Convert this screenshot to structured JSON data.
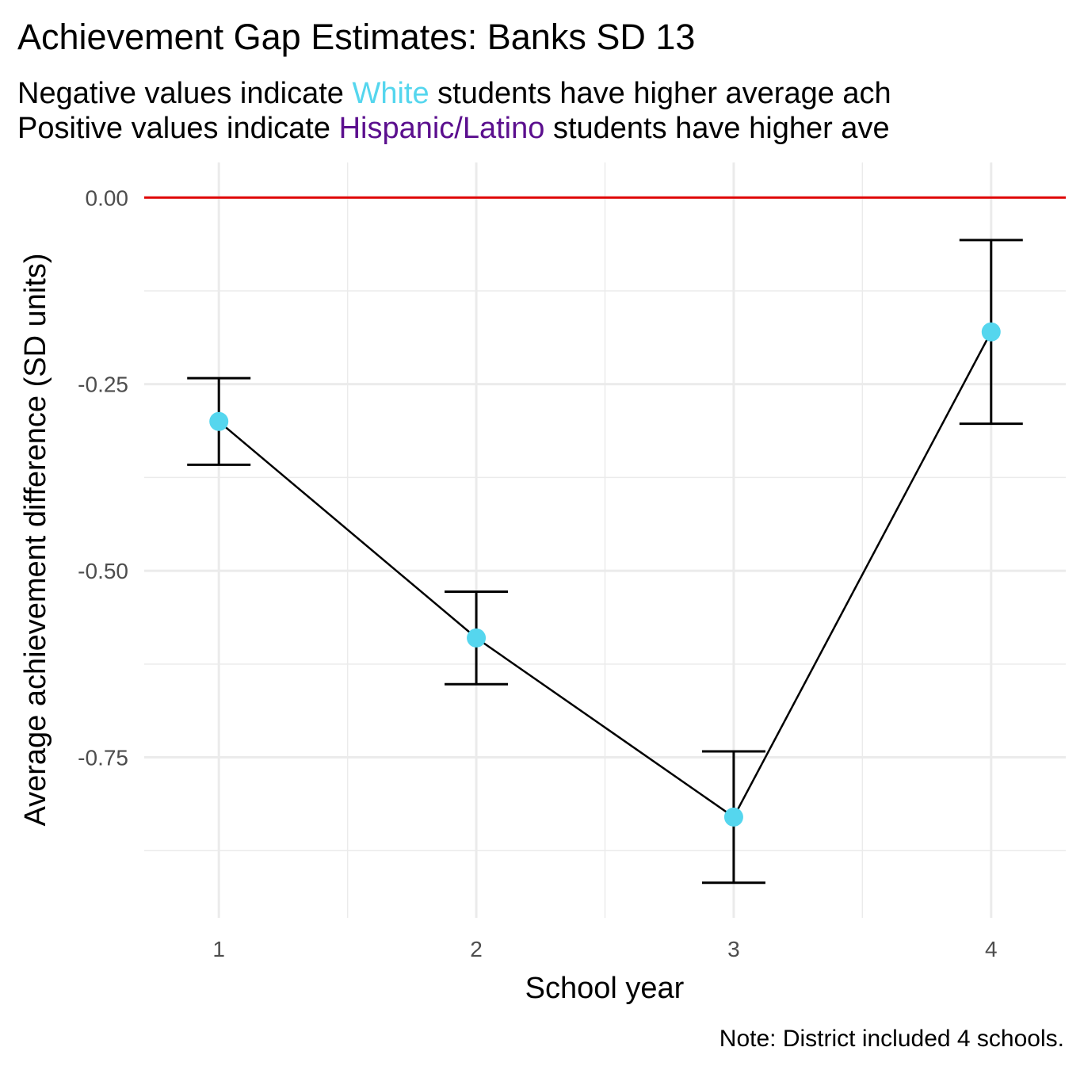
{
  "chart_data": {
    "type": "line",
    "title": "Achievement Gap Estimates: Banks SD 13",
    "subtitle_lines": [
      [
        {
          "text": "Negative values indicate "
        },
        {
          "text": "White",
          "color": "#55d6ee"
        },
        {
          "text": " students have higher average ach"
        }
      ],
      [
        {
          "text": "Positive values indicate "
        },
        {
          "text": "Hispanic/Latino",
          "color": "#5b0f8e"
        },
        {
          "text": " students have higher ave"
        }
      ]
    ],
    "x_label": "School year",
    "y_label": "Average achievement difference (SD units)",
    "caption": "Note: District included 4 schools.",
    "x": [
      1,
      2,
      3,
      4
    ],
    "values": [
      -0.3,
      -0.59,
      -0.83,
      -0.18
    ],
    "errors": [
      0.058,
      0.062,
      0.088,
      0.123
    ],
    "point_color": "#55d6ee",
    "line_color": "#000000",
    "reference_line": {
      "value": 0,
      "color": "#e00000"
    },
    "xlim": [
      0.71,
      4.29
    ],
    "xticks": [
      1,
      2,
      3,
      4
    ],
    "x_minor_ticks": [
      1.5,
      2.5,
      3.5
    ],
    "ylim": [
      -0.965,
      0.047
    ],
    "yticks": [
      {
        "value": 0,
        "label": "0.00"
      },
      -0.25,
      {
        "value": -0.5,
        "label": "-0.50"
      },
      -0.75
    ],
    "y_minor_ticks": [
      -0.125,
      -0.375,
      -0.625,
      -0.875
    ],
    "grid": true
  }
}
